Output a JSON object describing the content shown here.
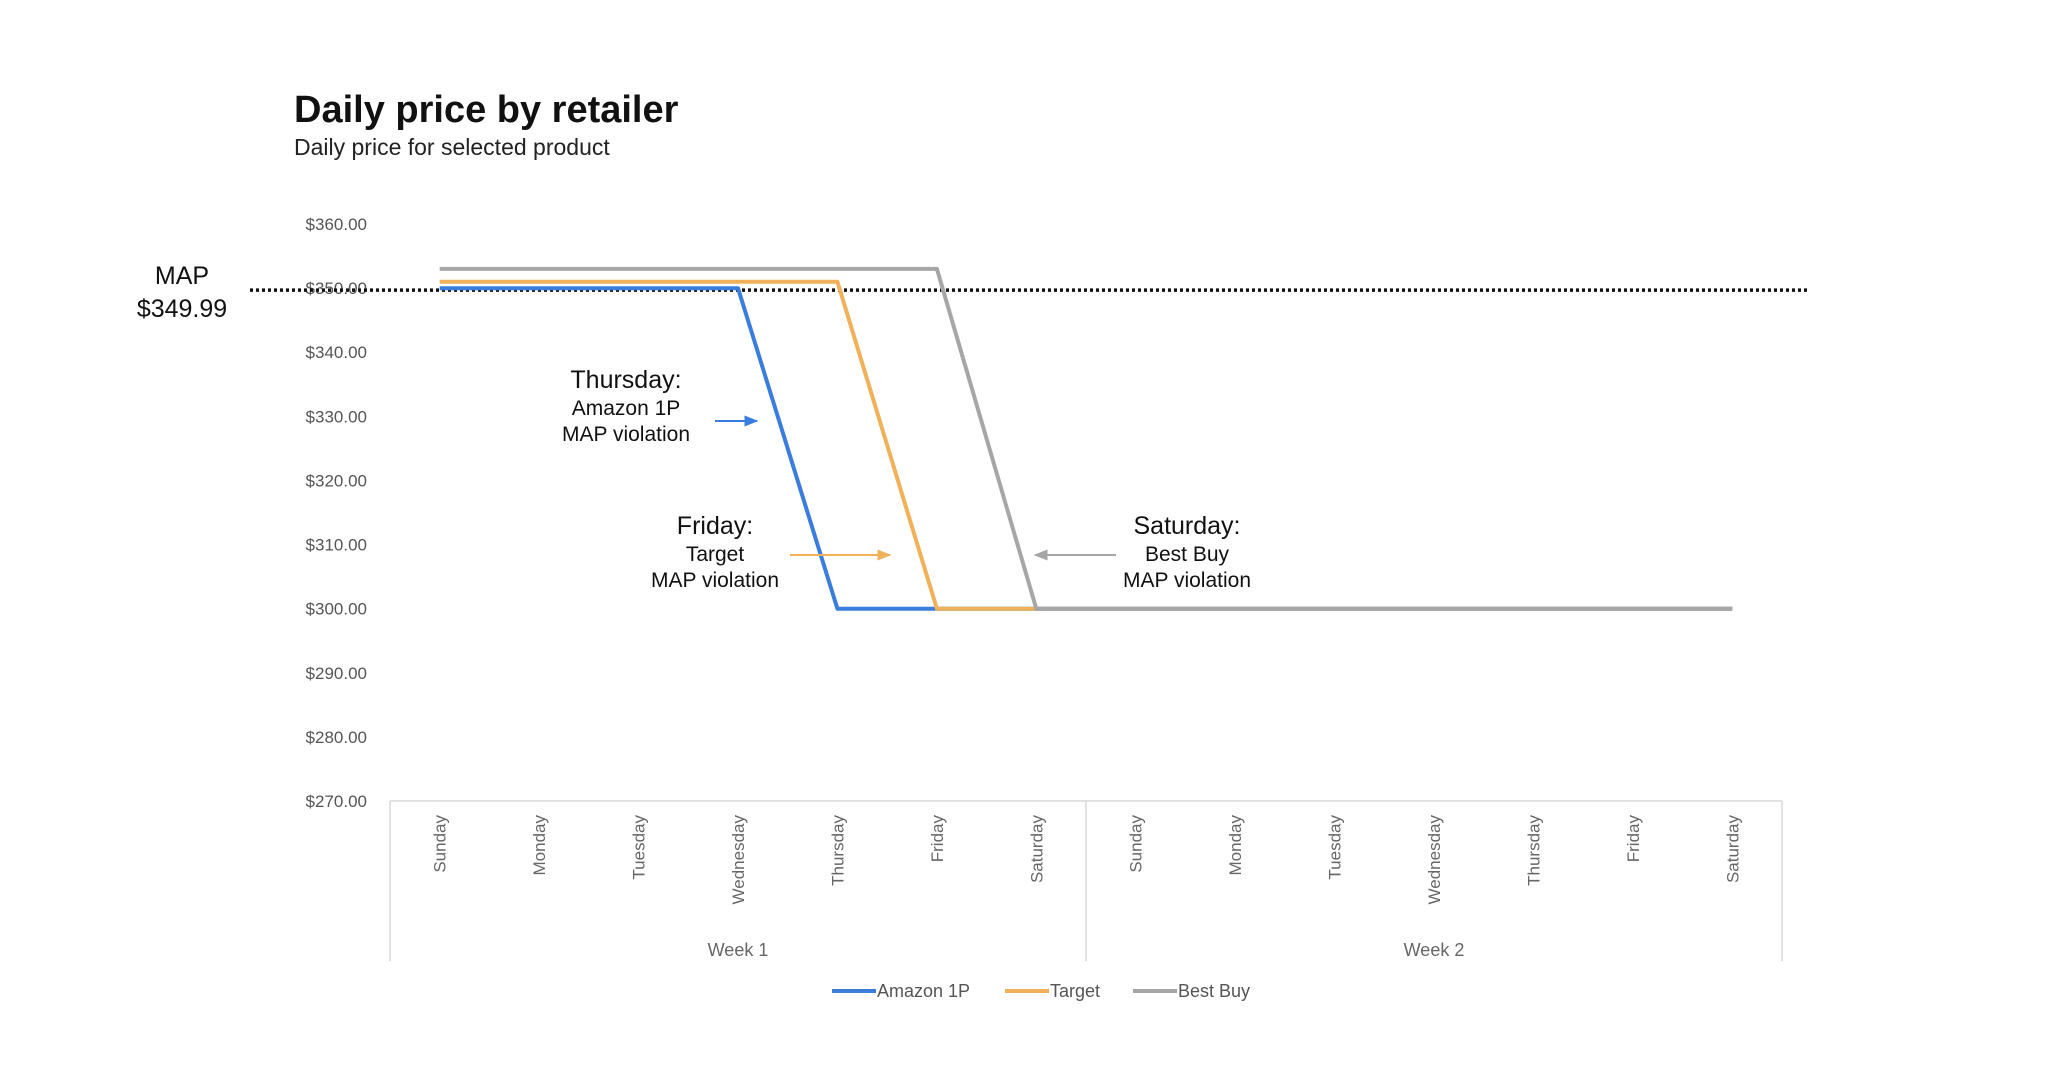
{
  "chart_data": {
    "type": "line",
    "title": "Daily price by retailer",
    "subtitle": "Daily price for selected product",
    "ylim": [
      270,
      360
    ],
    "yticks": [
      "$360.00",
      "$350.00",
      "$340.00",
      "$330.00",
      "$320.00",
      "$310.00",
      "$300.00",
      "$290.00",
      "$280.00",
      "$270.00"
    ],
    "ytick_values": [
      360,
      350,
      340,
      330,
      320,
      310,
      300,
      290,
      280,
      270
    ],
    "categories": [
      "Sunday",
      "Monday",
      "Tuesday",
      "Wednesday",
      "Thursday",
      "Friday",
      "Saturday",
      "Sunday",
      "Monday",
      "Tuesday",
      "Wednesday",
      "Thursday",
      "Friday",
      "Saturday"
    ],
    "groups": [
      {
        "label": "Week 1",
        "count": 7
      },
      {
        "label": "Week 2",
        "count": 7
      }
    ],
    "series": [
      {
        "name": "Amazon 1P",
        "color": "#3b7ddd",
        "values": [
          349.99,
          349.99,
          349.99,
          349.99,
          299.99,
          299.99,
          299.99,
          299.99,
          299.99,
          299.99,
          299.99,
          299.99,
          299.99,
          299.99
        ]
      },
      {
        "name": "Target",
        "color": "#f0b15a",
        "values": [
          351,
          351,
          351,
          351,
          351,
          299.99,
          299.99,
          299.99,
          299.99,
          299.99,
          299.99,
          299.99,
          299.99,
          299.99
        ]
      },
      {
        "name": "Best Buy",
        "color": "#a6a6a6",
        "values": [
          353,
          353,
          353,
          353,
          353,
          353,
          299.99,
          299.99,
          299.99,
          299.99,
          299.99,
          299.99,
          299.99,
          299.99
        ]
      }
    ],
    "reference_line": {
      "value": 349.99,
      "label_line1": "MAP",
      "label_line2": "$349.99"
    },
    "annotations": [
      {
        "heading": "Thursday:",
        "line1": "Amazon 1P",
        "line2": "MAP violation",
        "series": 0,
        "arrow": "right"
      },
      {
        "heading": "Friday:",
        "line1": "Target",
        "line2": "MAP violation",
        "series": 1,
        "arrow": "right"
      },
      {
        "heading": "Saturday:",
        "line1": "Best Buy",
        "line2": "MAP violation",
        "series": 2,
        "arrow": "left"
      }
    ],
    "legend_position": "bottom",
    "grid": false
  }
}
